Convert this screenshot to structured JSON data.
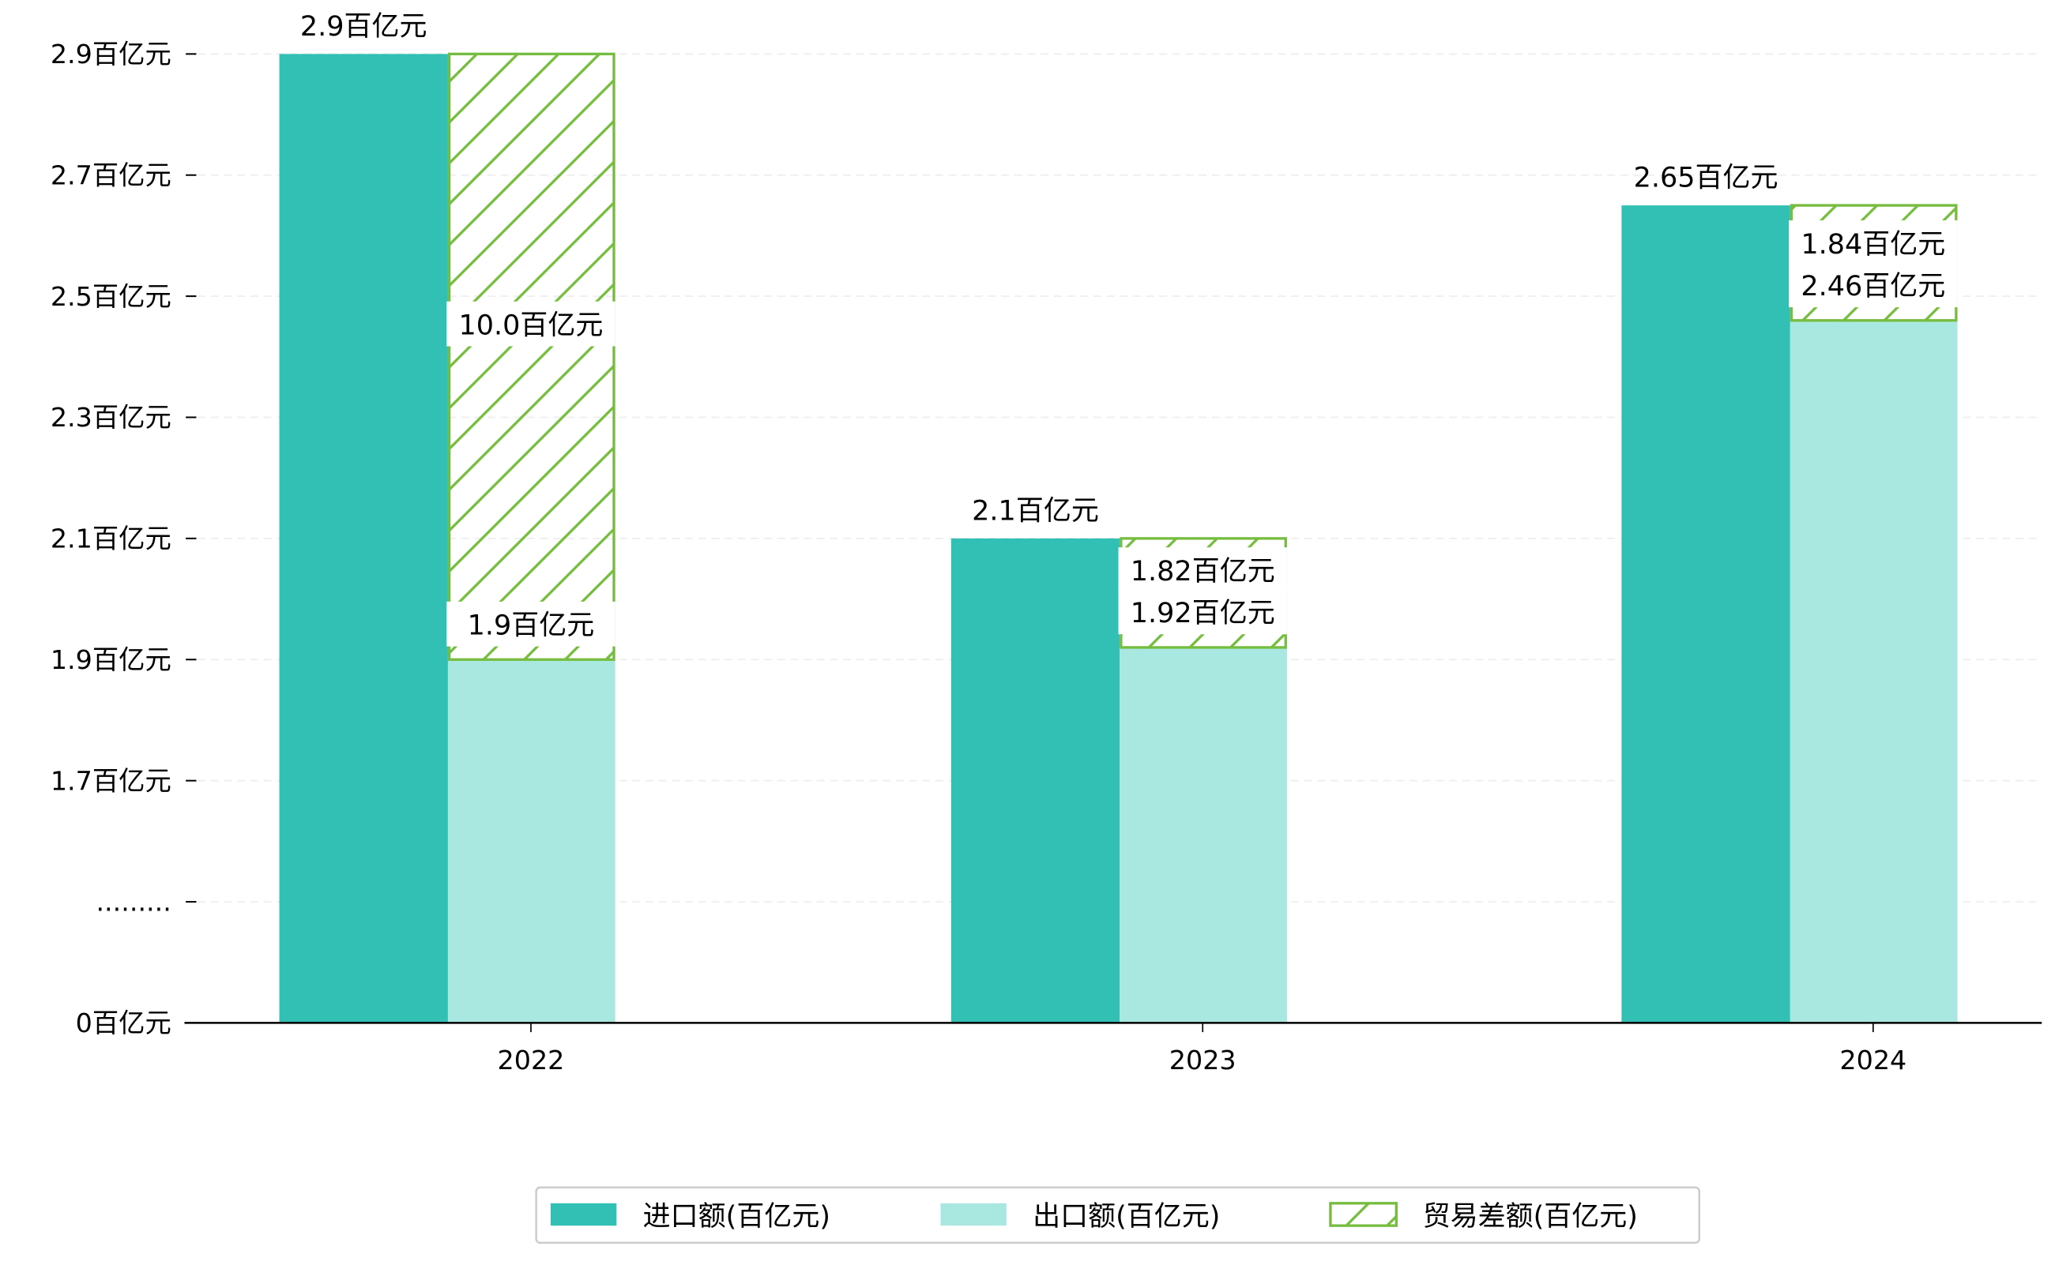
{
  "chart_data": {
    "type": "bar",
    "title": "",
    "xlabel": "",
    "ylabel": "",
    "categories": [
      "2022",
      "2023",
      "2024"
    ],
    "series": [
      {
        "name": "进口额(百亿元)",
        "values": [
          2.9,
          2.1,
          2.65
        ],
        "labels": [
          "2.9百亿元",
          "2.1百亿元",
          "2.65百亿元"
        ],
        "color": "#31c0b3"
      },
      {
        "name": "出口额(百亿元)",
        "values": [
          1.9,
          1.92,
          2.46
        ],
        "labels": [
          "1.9百亿元",
          "1.92百亿元",
          "2.46百亿元"
        ],
        "color": "#a9e7e1"
      },
      {
        "name": "贸易差额(百亿元)",
        "values": [
          10.0,
          1.82,
          1.84
        ],
        "labels": [
          "10.0百亿元",
          "1.82百亿元",
          "1.84百亿元"
        ],
        "color": "#76bd3f",
        "pattern": "hatch"
      }
    ],
    "yticks": [
      {
        "value": 0,
        "label": "0百亿元"
      },
      {
        "value": 1.5,
        "label": "........."
      },
      {
        "value": 1.7,
        "label": "1.7百亿元"
      },
      {
        "value": 1.9,
        "label": "1.9百亿元"
      },
      {
        "value": 2.1,
        "label": "2.1百亿元"
      },
      {
        "value": 2.3,
        "label": "2.3百亿元"
      },
      {
        "value": 2.5,
        "label": "2.5百亿元"
      },
      {
        "value": 2.7,
        "label": "2.7百亿元"
      },
      {
        "value": 2.9,
        "label": "2.9百亿元"
      }
    ],
    "ylim": [
      0,
      2.9
    ],
    "axis_break": 1.5,
    "grid": true,
    "legend_position": "bottom-center"
  }
}
